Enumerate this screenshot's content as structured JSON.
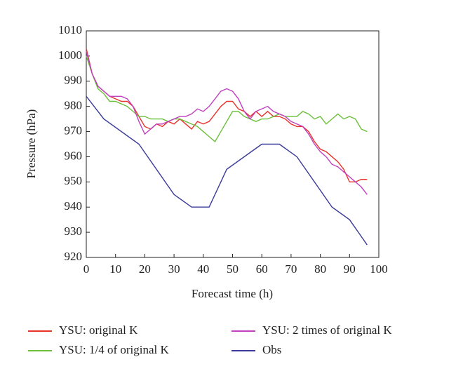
{
  "chart_data": {
    "type": "line",
    "xlabel": "Forecast time (h)",
    "ylabel": "Pressure (hPa)",
    "xlim": [
      0,
      100
    ],
    "xticks": [
      0,
      10,
      20,
      30,
      40,
      50,
      60,
      70,
      80,
      90,
      100
    ],
    "ylim": [
      920,
      1010
    ],
    "yticks": [
      920,
      930,
      940,
      950,
      960,
      970,
      980,
      990,
      1000,
      1010
    ],
    "series": [
      {
        "name": "YSU: original K",
        "color": "#e8322a",
        "x": [
          0,
          2,
          4,
          6,
          8,
          10,
          12,
          14,
          16,
          18,
          20,
          22,
          24,
          26,
          28,
          30,
          32,
          34,
          36,
          38,
          40,
          42,
          44,
          46,
          48,
          50,
          52,
          54,
          56,
          58,
          60,
          62,
          64,
          66,
          68,
          70,
          72,
          74,
          76,
          78,
          80,
          82,
          84,
          86,
          88,
          90,
          92,
          94,
          96
        ],
        "values": [
          1003,
          993,
          988,
          986,
          984,
          983,
          982,
          982,
          980,
          976,
          972,
          971,
          973,
          972,
          974,
          973,
          975,
          973,
          971,
          974,
          973,
          974,
          977,
          980,
          982,
          982,
          979,
          978,
          976,
          978,
          976,
          978,
          976,
          976,
          975,
          973,
          972,
          972,
          970,
          966,
          963,
          962,
          960,
          958,
          955,
          950,
          950,
          951,
          951
        ]
      },
      {
        "name": "YSU: 1/4 of original K",
        "color": "#6cbf3a",
        "x": [
          0,
          2,
          4,
          6,
          8,
          10,
          12,
          14,
          16,
          18,
          20,
          22,
          24,
          26,
          28,
          30,
          32,
          34,
          36,
          38,
          40,
          42,
          44,
          46,
          48,
          50,
          52,
          54,
          56,
          58,
          60,
          62,
          64,
          66,
          68,
          70,
          72,
          74,
          76,
          78,
          80,
          82,
          84,
          86,
          88,
          90,
          92,
          94,
          96
        ],
        "values": [
          1000,
          993,
          987,
          985,
          982,
          982,
          981,
          980,
          978,
          976,
          976,
          975,
          975,
          975,
          974,
          975,
          975,
          974,
          973,
          972,
          970,
          968,
          966,
          970,
          974,
          978,
          978,
          976,
          975,
          974,
          975,
          975,
          976,
          977,
          976,
          976,
          976,
          978,
          977,
          975,
          976,
          973,
          975,
          977,
          975,
          976,
          975,
          971,
          970
        ]
      },
      {
        "name": "YSU: 2 times of original K",
        "color": "#c040c0",
        "x": [
          0,
          2,
          4,
          6,
          8,
          10,
          12,
          14,
          16,
          18,
          20,
          22,
          24,
          26,
          28,
          30,
          32,
          34,
          36,
          38,
          40,
          42,
          44,
          46,
          48,
          50,
          52,
          54,
          56,
          58,
          60,
          62,
          64,
          66,
          68,
          70,
          72,
          74,
          76,
          78,
          80,
          82,
          84,
          86,
          88,
          90,
          92,
          94,
          96
        ],
        "values": [
          1002,
          993,
          988,
          986,
          984,
          984,
          984,
          983,
          980,
          974,
          969,
          971,
          973,
          973,
          974,
          975,
          976,
          976,
          977,
          979,
          978,
          980,
          983,
          986,
          987,
          986,
          983,
          978,
          975,
          978,
          979,
          980,
          978,
          977,
          976,
          974,
          973,
          972,
          969,
          965,
          962,
          960,
          957,
          956,
          954,
          952,
          950,
          948,
          945
        ]
      },
      {
        "name": "Obs",
        "color": "#3a3a9a",
        "x": [
          0,
          6,
          18,
          30,
          36,
          42,
          48,
          60,
          66,
          72,
          84,
          90,
          96
        ],
        "values": [
          984,
          975,
          965,
          945,
          940,
          940,
          955,
          965,
          965,
          960,
          940,
          935,
          925
        ]
      }
    ]
  }
}
